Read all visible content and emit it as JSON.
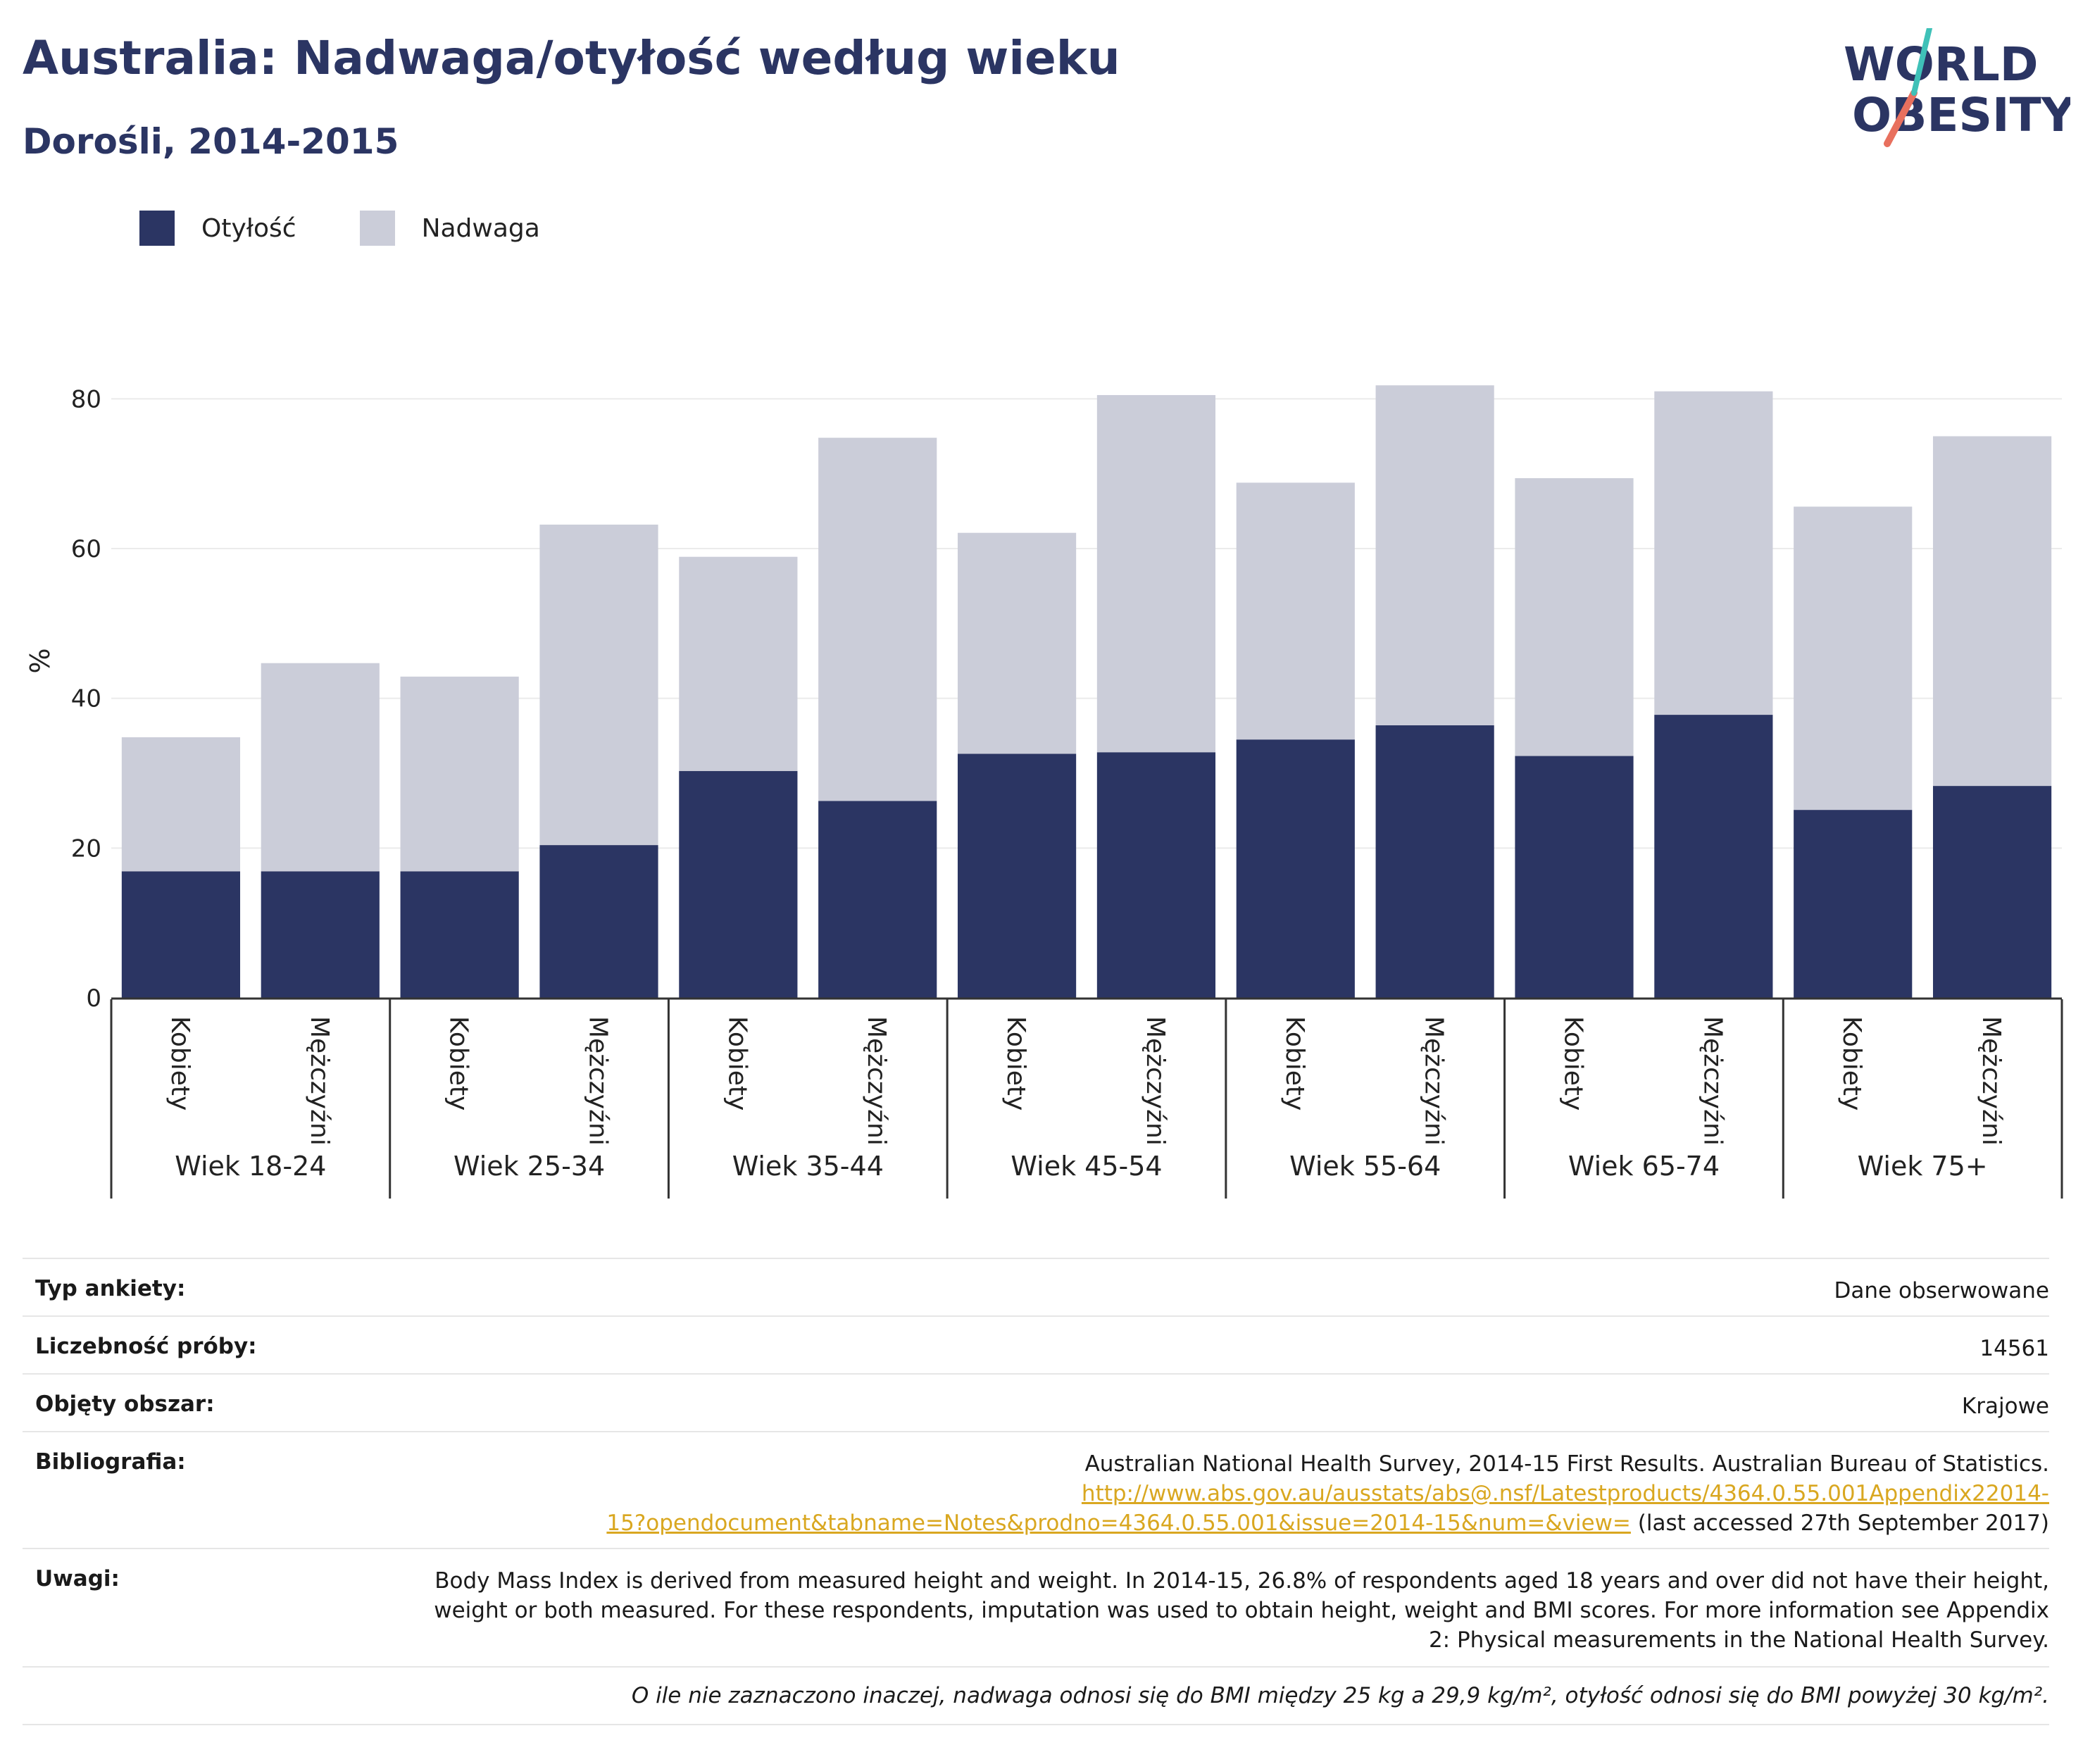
{
  "header": {
    "title": "Australia: Nadwaga/otyłość według wieku",
    "subtitle": "Dorośli, 2014-2015"
  },
  "logo": {
    "line1": "WORLD",
    "line2": "OBESITY",
    "accent": "#e8705e",
    "accent2": "#3fc1b8",
    "text_color": "#2b3563"
  },
  "legend": [
    {
      "label": "Otyłość",
      "color": "#2b3563"
    },
    {
      "label": "Nadwaga",
      "color": "#cbcdd9"
    }
  ],
  "chart_data": {
    "type": "bar",
    "stacked": true,
    "ylabel": "%",
    "ylim": [
      0,
      90
    ],
    "yticks": [
      0,
      20,
      40,
      60,
      80
    ],
    "grid": true,
    "legend_position": "top-left",
    "groups": [
      "Wiek 18-24",
      "Wiek 25-34",
      "Wiek 35-44",
      "Wiek 45-54",
      "Wiek 55-64",
      "Wiek 65-74",
      "Wiek 75+"
    ],
    "subcategories": [
      "Kobiety",
      "Mężczyźni"
    ],
    "series": [
      {
        "name": "Otyłość",
        "color": "#2b3563",
        "values": [
          16.9,
          16.9,
          16.9,
          20.4,
          30.3,
          26.3,
          32.6,
          32.8,
          34.5,
          36.4,
          32.3,
          37.8,
          25.1,
          28.3
        ]
      },
      {
        "name": "Nadwaga",
        "color": "#cbcdd9",
        "values": [
          17.9,
          27.8,
          26.0,
          42.8,
          28.6,
          48.5,
          29.5,
          47.7,
          34.3,
          45.4,
          37.1,
          43.2,
          40.5,
          46.7
        ]
      }
    ]
  },
  "meta": {
    "survey_type_label": "Typ ankiety:",
    "survey_type_value": "Dane obserwowane",
    "sample_label": "Liczebność próby:",
    "sample_value": "14561",
    "area_label": "Objęty obszar:",
    "area_value": "Krajowe",
    "biblio_label": "Bibliografia:",
    "biblio_text": "Australian National Health Survey, 2014-15 First Results. Australian Bureau of Statistics.",
    "biblio_link_1": "http://www.abs.gov.au/ausstats/abs@.nsf/Latestproducts/4364.0.55.001Appendix22014-",
    "biblio_link_2": "15?opendocument&tabname=Notes&prodno=4364.0.55.001&issue=2014-15&num=&view=",
    "biblio_suffix": " (last accessed 27th September 2017)",
    "notes_label": "Uwagi:",
    "notes_value": "Body Mass Index is derived from measured height and weight. In 2014-15, 26.8% of respondents aged 18 years and over did not have their height, weight or both measured. For these respondents, imputation was used to obtain height, weight and BMI scores. For more information see Appendix 2: Physical measurements in the National Health Survey.",
    "footnote": "O ile nie zaznaczono inaczej, nadwaga odnosi się do BMI między 25 kg a 29,9 kg/m², otyłość odnosi się do BMI powyżej 30 kg/m²."
  }
}
